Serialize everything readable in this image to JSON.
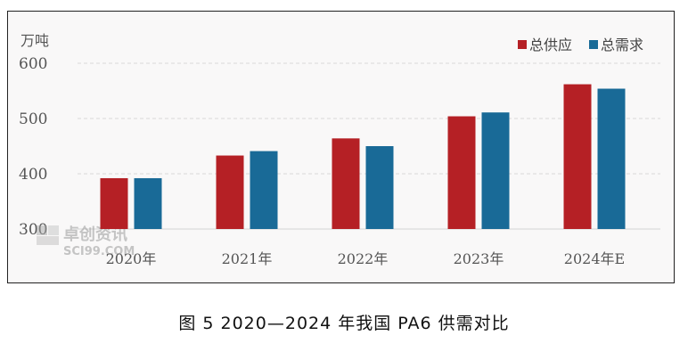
{
  "chart_data": {
    "type": "bar",
    "unit": "万吨",
    "categories": [
      "2020年",
      "2021年",
      "2022年",
      "2023年",
      "2024年E"
    ],
    "series": [
      {
        "name": "总供应",
        "color": "#b52025",
        "values": [
          392,
          433,
          464,
          504,
          562
        ]
      },
      {
        "name": "总需求",
        "color": "#196a97",
        "values": [
          392,
          441,
          450,
          511,
          554
        ]
      }
    ],
    "ylim": [
      300,
      600
    ],
    "yticks": [
      300,
      400,
      500,
      600
    ],
    "grid": true,
    "legend": "top-right"
  },
  "watermark": {
    "name": "卓创资讯",
    "domain": "SCI99.COM"
  },
  "caption": "图 5  2020—2024 年我国 PA6 供需对比"
}
